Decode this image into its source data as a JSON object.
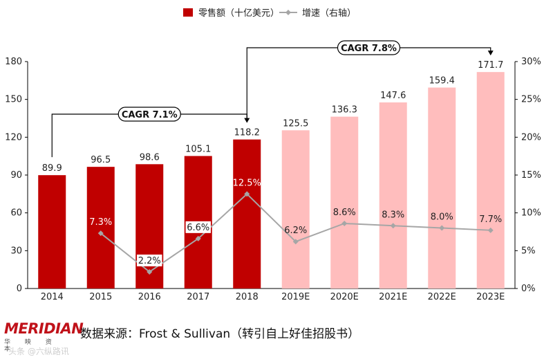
{
  "chart_data": {
    "type": "bar",
    "categories": [
      "2014",
      "2015",
      "2016",
      "2017",
      "2018",
      "2019E",
      "2020E",
      "2021E",
      "2022E",
      "2023E"
    ],
    "series": [
      {
        "name": "零售额（十亿美元）",
        "axis": "left",
        "type": "bar",
        "values": [
          89.9,
          96.5,
          98.6,
          105.1,
          118.2,
          125.5,
          136.3,
          147.6,
          159.4,
          171.7
        ],
        "value_labels": [
          "89.9",
          "96.5",
          "98.6",
          "105.1",
          "118.2",
          "125.5",
          "136.3",
          "147.6",
          "159.4",
          "171.7"
        ],
        "actual_color": "#c00000",
        "forecast_color": "#ffbdbd"
      },
      {
        "name": "增速（右轴）",
        "axis": "right",
        "type": "line",
        "color": "#a6a6a6",
        "values": [
          null,
          7.3,
          2.2,
          6.6,
          12.5,
          6.2,
          8.6,
          8.3,
          8.0,
          7.7
        ],
        "value_labels": [
          "",
          "7.3%",
          "2.2%",
          "6.6%",
          "12.5%",
          "6.2%",
          "8.6%",
          "8.3%",
          "8.0%",
          "7.7%"
        ]
      }
    ],
    "forecast_start_index": 5,
    "left_axis": {
      "ylim": [
        0,
        180
      ],
      "ticks": [
        0,
        30,
        60,
        90,
        120,
        150,
        180
      ],
      "tick_labels": [
        "0",
        "30",
        "60",
        "90",
        "120",
        "150",
        "180"
      ]
    },
    "right_axis": {
      "ylim": [
        0,
        30
      ],
      "ticks": [
        0,
        5,
        10,
        15,
        20,
        25,
        30
      ],
      "tick_labels": [
        "0%",
        "5%",
        "10%",
        "15%",
        "20%",
        "25%",
        "30%"
      ]
    },
    "annotations": [
      {
        "text": "CAGR 7.1%",
        "from_index": 0,
        "to_index": 4
      },
      {
        "text": "CAGR 7.8%",
        "from_index": 4,
        "to_index": 9
      }
    ],
    "legend": {
      "position": "top-center"
    },
    "grid": false
  },
  "footer": {
    "logo_word": "MERIDIAN",
    "logo_sub": "华 映 资 本",
    "source": "数据来源：Frost & Sullivan（转引自上好佳招股书）",
    "watermark": "头条 @六纵路讯"
  }
}
